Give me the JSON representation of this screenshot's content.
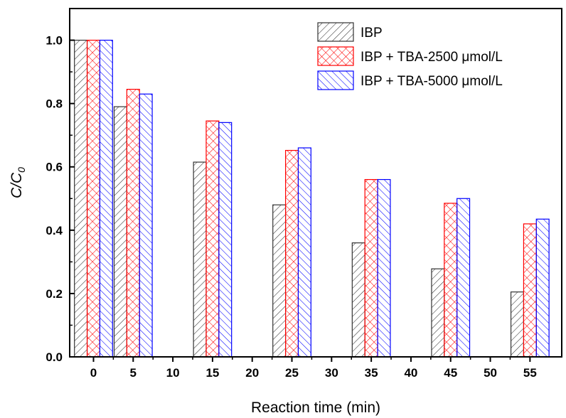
{
  "chart_data": {
    "type": "bar",
    "xlabel": "Reaction time (min)",
    "ylabel": {
      "main": "C/C",
      "sub": "0"
    },
    "xlim": [
      -3,
      59
    ],
    "ylim": [
      0.0,
      1.1
    ],
    "x_ticks": [
      0,
      5,
      10,
      15,
      20,
      25,
      30,
      35,
      40,
      45,
      50,
      55
    ],
    "y_ticks": [
      "0.0",
      "0.2",
      "0.4",
      "0.6",
      "0.8",
      "1.0"
    ],
    "categories": [
      0,
      5,
      15,
      25,
      35,
      45,
      55
    ],
    "bar_width": 1.6,
    "series": [
      {
        "name": "IBP",
        "values": [
          1.0,
          0.79,
          0.615,
          0.48,
          0.36,
          0.278,
          0.205
        ],
        "color": "#333333",
        "pattern": "diag-right"
      },
      {
        "name": "IBP + TBA-2500 μmol/L",
        "values": [
          1.0,
          0.845,
          0.745,
          0.652,
          0.56,
          0.485,
          0.42
        ],
        "color": "#ff0000",
        "pattern": "crosshatch"
      },
      {
        "name": "IBP + TBA-5000 μmol/L",
        "values": [
          1.0,
          0.83,
          0.74,
          0.66,
          0.56,
          0.5,
          0.435
        ],
        "color": "#0000ff",
        "pattern": "diag-left"
      }
    ],
    "legend_position": "top-right",
    "grid": false
  }
}
